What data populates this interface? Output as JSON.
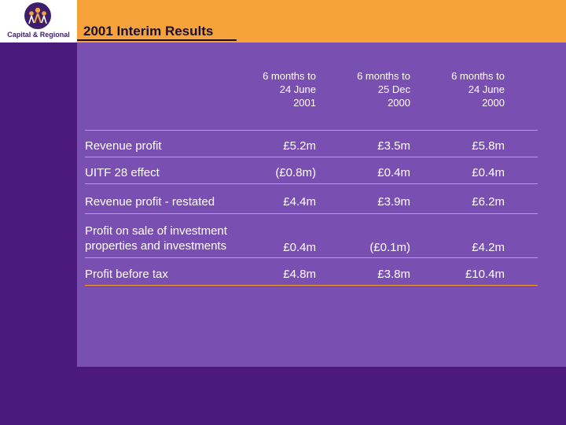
{
  "logo": {
    "text": "Capital & Regional",
    "icon": "people-circle-logo"
  },
  "header": {
    "title": "2001 Interim Results"
  },
  "table": {
    "columns": [
      {
        "line1": "6 months to",
        "line2": "24 June",
        "line3": "2001"
      },
      {
        "line1": "6 months to",
        "line2": "25 Dec",
        "line3": "2000"
      },
      {
        "line1": "6 months to",
        "line2": "24 June",
        "line3": "2000"
      }
    ],
    "rows": [
      {
        "label": "Revenue profit",
        "values": [
          "£5.2m",
          "£3.5m",
          "£5.8m"
        ]
      },
      {
        "label": "UITF 28 effect",
        "values": [
          "(£0.8m)",
          "£0.4m",
          "£0.4m"
        ]
      },
      {
        "label": "Revenue profit - restated",
        "values": [
          "£4.4m",
          "£3.9m",
          "£6.2m"
        ]
      },
      {
        "label_line1": "Profit on sale of investment",
        "label_line2": "properties and investments",
        "values": [
          "£0.4m",
          "(£0.1m)",
          "£4.2m"
        ]
      },
      {
        "label": "Profit before tax",
        "values": [
          "£4.8m",
          "£3.8m",
          "£10.4m"
        ]
      }
    ]
  },
  "colors": {
    "header": "#f7a23a",
    "panel": "#7a4fb2",
    "background": "#4c1a7a",
    "rule": "#f2a03a"
  }
}
